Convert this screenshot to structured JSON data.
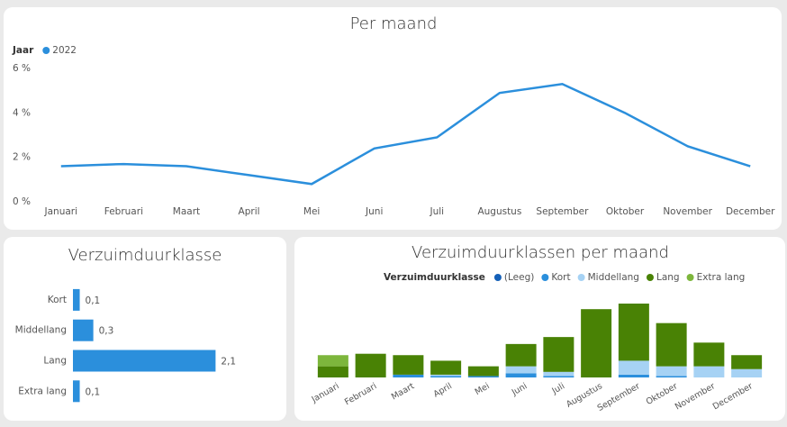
{
  "chart_data": [
    {
      "type": "line",
      "title": "Per maand",
      "legend_title": "Jaar",
      "categories": [
        "Januari",
        "Februari",
        "Maart",
        "April",
        "Mei",
        "Juni",
        "Juli",
        "Augustus",
        "September",
        "Oktober",
        "November",
        "December"
      ],
      "series": [
        {
          "name": "2022",
          "color": "#2b8fdc",
          "values": [
            1.6,
            1.7,
            1.6,
            1.2,
            0.8,
            2.4,
            2.9,
            4.9,
            5.3,
            4.0,
            2.5,
            1.6
          ]
        }
      ],
      "ylim": [
        0,
        6
      ],
      "yticks": [
        {
          "value": 0,
          "label": "0 %"
        },
        {
          "value": 2,
          "label": "2 %"
        },
        {
          "value": 4,
          "label": "4 %"
        },
        {
          "value": 6,
          "label": "6 %"
        }
      ]
    },
    {
      "type": "hbar",
      "title": "Verzuimduurklasse",
      "categories": [
        "Kort",
        "Middellang",
        "Lang",
        "Extra lang"
      ],
      "values": [
        0.1,
        0.3,
        2.1,
        0.1
      ],
      "value_labels": [
        "0,1",
        "0,3",
        "2,1",
        "0,1"
      ],
      "color": "#2b8fdc"
    },
    {
      "type": "stacked_bar",
      "title": "Verzuimduurklassen per maand",
      "legend_title": "Verzuimduurklasse",
      "categories": [
        "Januari",
        "Februari",
        "Maart",
        "April",
        "Mei",
        "Juni",
        "Juli",
        "Augustus",
        "September",
        "Oktober",
        "November",
        "December"
      ],
      "series": [
        {
          "name": "(Leeg)",
          "color": "#1560b8",
          "values": [
            0,
            0,
            0,
            0,
            0,
            0,
            0,
            0,
            0,
            0,
            0,
            0
          ]
        },
        {
          "name": "Kort",
          "color": "#2b8fdc",
          "values": [
            0,
            0,
            0.2,
            0.1,
            0.1,
            0.3,
            0.1,
            0,
            0.2,
            0.1,
            0,
            0
          ]
        },
        {
          "name": "Middellang",
          "color": "#a6d2f4",
          "values": [
            0,
            0,
            0,
            0.1,
            0,
            0.5,
            0.3,
            0,
            1.0,
            0.7,
            0.8,
            0.6
          ]
        },
        {
          "name": "Lang",
          "color": "#498205",
          "values": [
            0.8,
            1.7,
            1.4,
            1.0,
            0.7,
            1.6,
            2.5,
            4.9,
            4.1,
            3.1,
            1.7,
            1.0
          ]
        },
        {
          "name": "Extra lang",
          "color": "#7db63c",
          "values": [
            0.8,
            0,
            0,
            0,
            0,
            0,
            0,
            0,
            0,
            0,
            0,
            0
          ]
        }
      ]
    }
  ]
}
